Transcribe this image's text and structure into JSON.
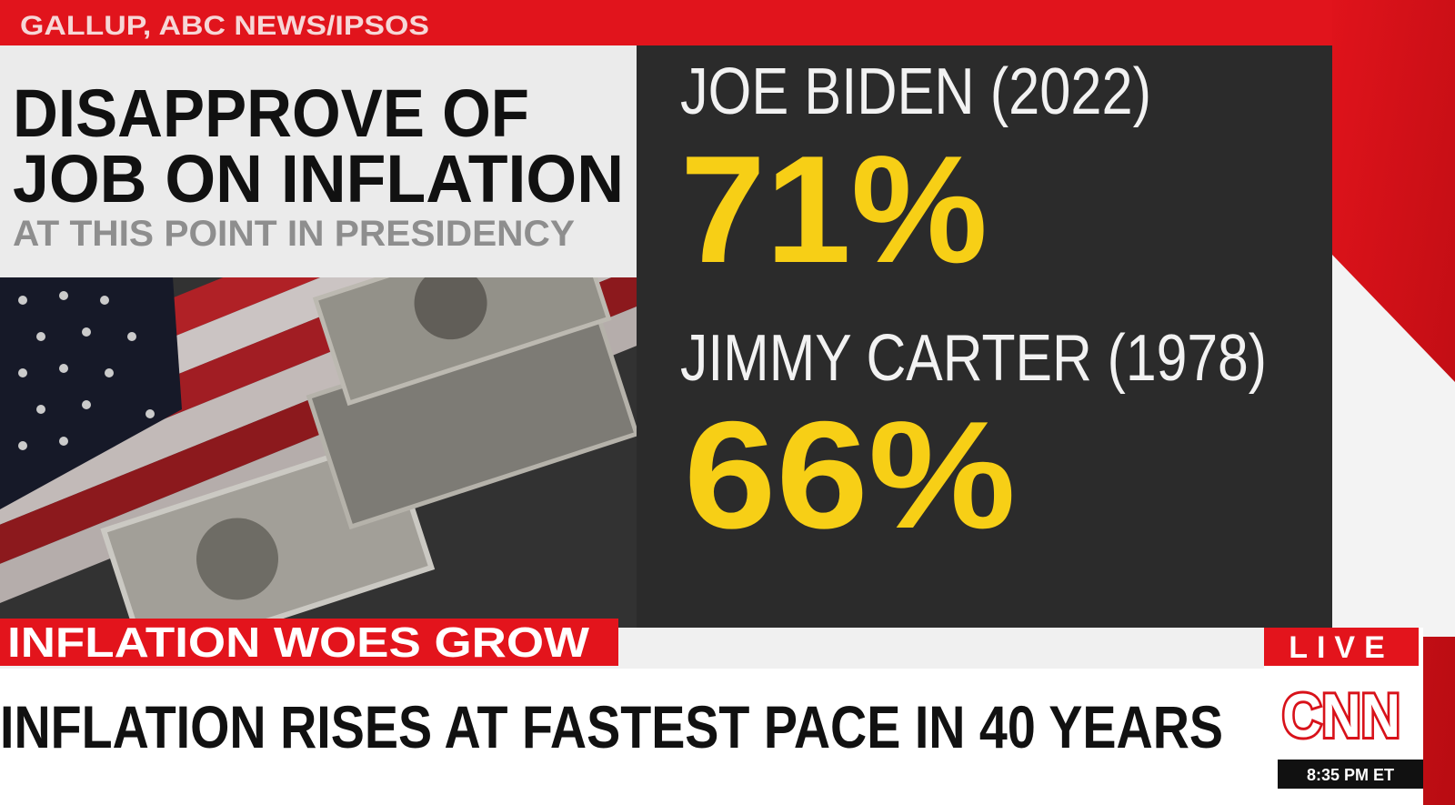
{
  "source": "GALLUP, ABC NEWS/IPSOS",
  "headline": {
    "lines": [
      "DISAPPROVE OF",
      "JOB ON INFLATION"
    ],
    "subtitle": "AT THIS POINT IN PRESIDENCY"
  },
  "results": [
    {
      "label": "JOE BIDEN (2022)",
      "value": "71%"
    },
    {
      "label": "JIMMY CARTER (1978)",
      "value": "66%"
    }
  ],
  "ticker": {
    "tag": "INFLATION WOES GROW",
    "headline": "INFLATION RISES AT FASTEST PACE IN 40 YEARS"
  },
  "network": {
    "live": "LIVE",
    "logo": "CNN",
    "time": "8:35 PM ET"
  }
}
